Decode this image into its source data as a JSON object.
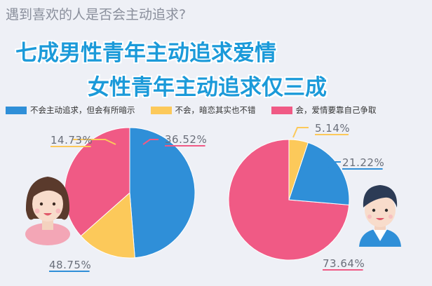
{
  "question": "遇到喜欢的人是否会主动追求?",
  "headline_1": "七成男性青年主动追求爱情",
  "headline_2": "女性青年主动追求仅三成",
  "colors": {
    "blue": "#2f8fd8",
    "yellow": "#fcc95a",
    "pink": "#f05a85"
  },
  "legend": [
    {
      "label": "不会主动追求，但会有所暗示",
      "color": "#2f8fd8"
    },
    {
      "label": "不会，暗恋其实也不错",
      "color": "#fcc95a"
    },
    {
      "label": "会，爱情要靠自己争取",
      "color": "#f05a85"
    }
  ],
  "chart_data": [
    {
      "type": "pie",
      "icon": "female-avatar-icon",
      "categories": [
        "不会主动追求，但会有所暗示",
        "不会，暗恋其实也不错",
        "会，爱情要靠自己争取"
      ],
      "values": [
        48.75,
        14.73,
        36.52
      ],
      "labels": [
        "48.75%",
        "14.73%",
        "36.52%"
      ]
    },
    {
      "type": "pie",
      "icon": "male-avatar-icon",
      "categories": [
        "不会主动追求，但会有所暗示",
        "不会，暗恋其实也不错",
        "会，爱情要靠自己争取"
      ],
      "values": [
        21.22,
        5.14,
        73.64
      ],
      "labels": [
        "21.22%",
        "5.14%",
        "73.64%"
      ]
    }
  ]
}
